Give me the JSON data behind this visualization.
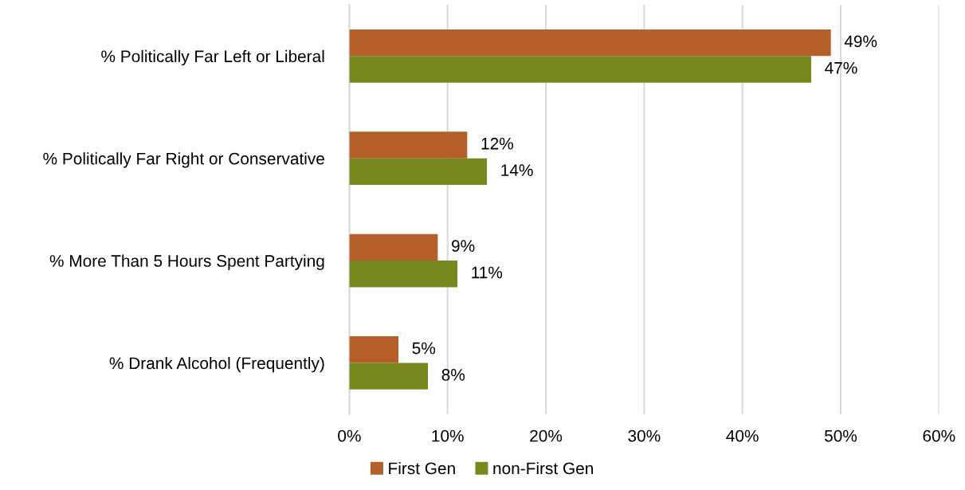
{
  "chart_data": {
    "type": "bar",
    "orientation": "horizontal",
    "categories": [
      "% Politically Far Left or Liberal",
      "% Politically Far Right or Conservative",
      "% More Than 5 Hours Spent Partying",
      "% Drank Alcohol (Frequently)"
    ],
    "series": [
      {
        "name": "First Gen",
        "color": "#b5602a",
        "values": [
          49,
          12,
          9,
          5
        ],
        "value_labels": [
          "49%",
          "12%",
          "9%",
          "5%"
        ]
      },
      {
        "name": "non-First Gen",
        "color": "#77881f",
        "values": [
          47,
          14,
          11,
          8
        ],
        "value_labels": [
          "47%",
          "14%",
          "11%",
          "8%"
        ]
      }
    ],
    "xlim": [
      0,
      60
    ],
    "xticks": [
      {
        "value": 0,
        "label": "0%"
      },
      {
        "value": 10,
        "label": "10%"
      },
      {
        "value": 20,
        "label": "20%"
      },
      {
        "value": 30,
        "label": "30%"
      },
      {
        "value": 40,
        "label": "40%"
      },
      {
        "value": 50,
        "label": "50%"
      },
      {
        "value": 60,
        "label": "60%"
      }
    ],
    "grid": "x",
    "legend": "bottom"
  }
}
